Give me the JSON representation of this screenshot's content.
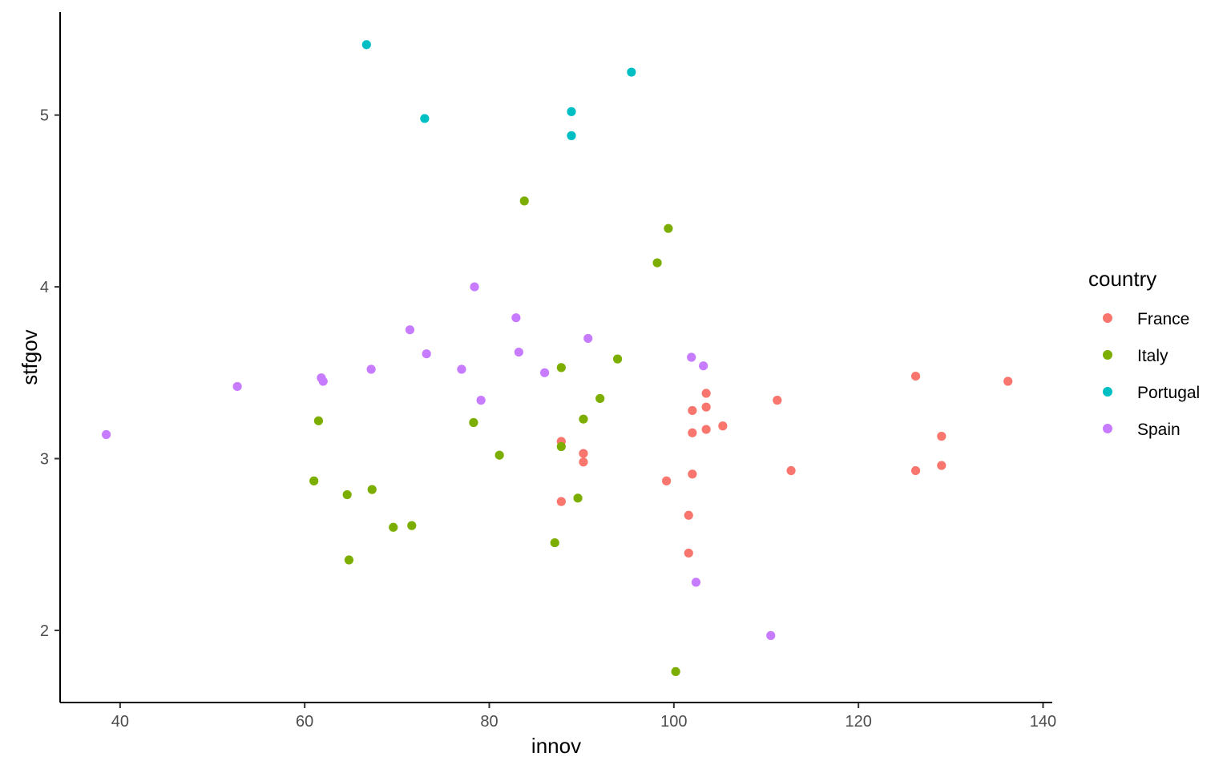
{
  "chart_data": {
    "type": "scatter",
    "xlabel": "innov",
    "ylabel": "stfgov",
    "xlim": [
      33.5,
      141
    ],
    "ylim": [
      1.58,
      5.6
    ],
    "x_ticks": [
      40,
      60,
      80,
      100,
      120,
      140
    ],
    "y_ticks": [
      2,
      3,
      4,
      5
    ],
    "x_tick_labels": [
      "40",
      "60",
      "80",
      "100",
      "120",
      "140"
    ],
    "y_tick_labels": [
      "2",
      "3",
      "4",
      "5"
    ],
    "grid": false,
    "legend": {
      "title": "country",
      "position": "right"
    },
    "series": [
      {
        "name": "France",
        "color": "#F8766D",
        "points": [
          [
            87.8,
            3.1
          ],
          [
            90.2,
            3.03
          ],
          [
            90.2,
            2.98
          ],
          [
            87.8,
            2.75
          ],
          [
            99.2,
            2.87
          ],
          [
            101.6,
            2.67
          ],
          [
            101.6,
            2.45
          ],
          [
            102.0,
            3.28
          ],
          [
            102.0,
            3.15
          ],
          [
            102.0,
            2.91
          ],
          [
            103.5,
            3.38
          ],
          [
            103.5,
            3.3
          ],
          [
            103.5,
            3.17
          ],
          [
            105.3,
            3.19
          ],
          [
            111.2,
            3.34
          ],
          [
            112.7,
            2.93
          ],
          [
            126.2,
            3.48
          ],
          [
            126.2,
            2.93
          ],
          [
            129.0,
            3.13
          ],
          [
            129.0,
            2.96
          ],
          [
            136.2,
            3.45
          ]
        ]
      },
      {
        "name": "Italy",
        "color": "#7CAE00",
        "points": [
          [
            83.8,
            4.5
          ],
          [
            99.4,
            4.34
          ],
          [
            98.2,
            4.14
          ],
          [
            93.9,
            3.58
          ],
          [
            87.8,
            3.53
          ],
          [
            92.0,
            3.35
          ],
          [
            90.2,
            3.23
          ],
          [
            78.3,
            3.21
          ],
          [
            61.5,
            3.22
          ],
          [
            81.1,
            3.02
          ],
          [
            87.8,
            3.07
          ],
          [
            61.0,
            2.87
          ],
          [
            64.6,
            2.79
          ],
          [
            67.3,
            2.82
          ],
          [
            89.6,
            2.77
          ],
          [
            69.6,
            2.6
          ],
          [
            71.6,
            2.61
          ],
          [
            87.1,
            2.51
          ],
          [
            64.8,
            2.41
          ],
          [
            100.2,
            1.76
          ]
        ]
      },
      {
        "name": "Portugal",
        "color": "#00BFC4",
        "points": [
          [
            66.7,
            5.41
          ],
          [
            95.4,
            5.25
          ],
          [
            88.9,
            5.02
          ],
          [
            73.0,
            4.98
          ],
          [
            88.9,
            4.88
          ]
        ]
      },
      {
        "name": "Spain",
        "color": "#C77CFF",
        "points": [
          [
            78.4,
            4.0
          ],
          [
            82.9,
            3.82
          ],
          [
            71.4,
            3.75
          ],
          [
            90.7,
            3.7
          ],
          [
            73.2,
            3.61
          ],
          [
            83.2,
            3.62
          ],
          [
            101.9,
            3.59
          ],
          [
            103.2,
            3.54
          ],
          [
            77.0,
            3.52
          ],
          [
            67.2,
            3.52
          ],
          [
            86.0,
            3.5
          ],
          [
            61.8,
            3.47
          ],
          [
            62.0,
            3.45
          ],
          [
            52.7,
            3.42
          ],
          [
            79.1,
            3.34
          ],
          [
            38.5,
            3.14
          ],
          [
            102.4,
            2.28
          ],
          [
            110.5,
            1.97
          ]
        ]
      }
    ]
  }
}
